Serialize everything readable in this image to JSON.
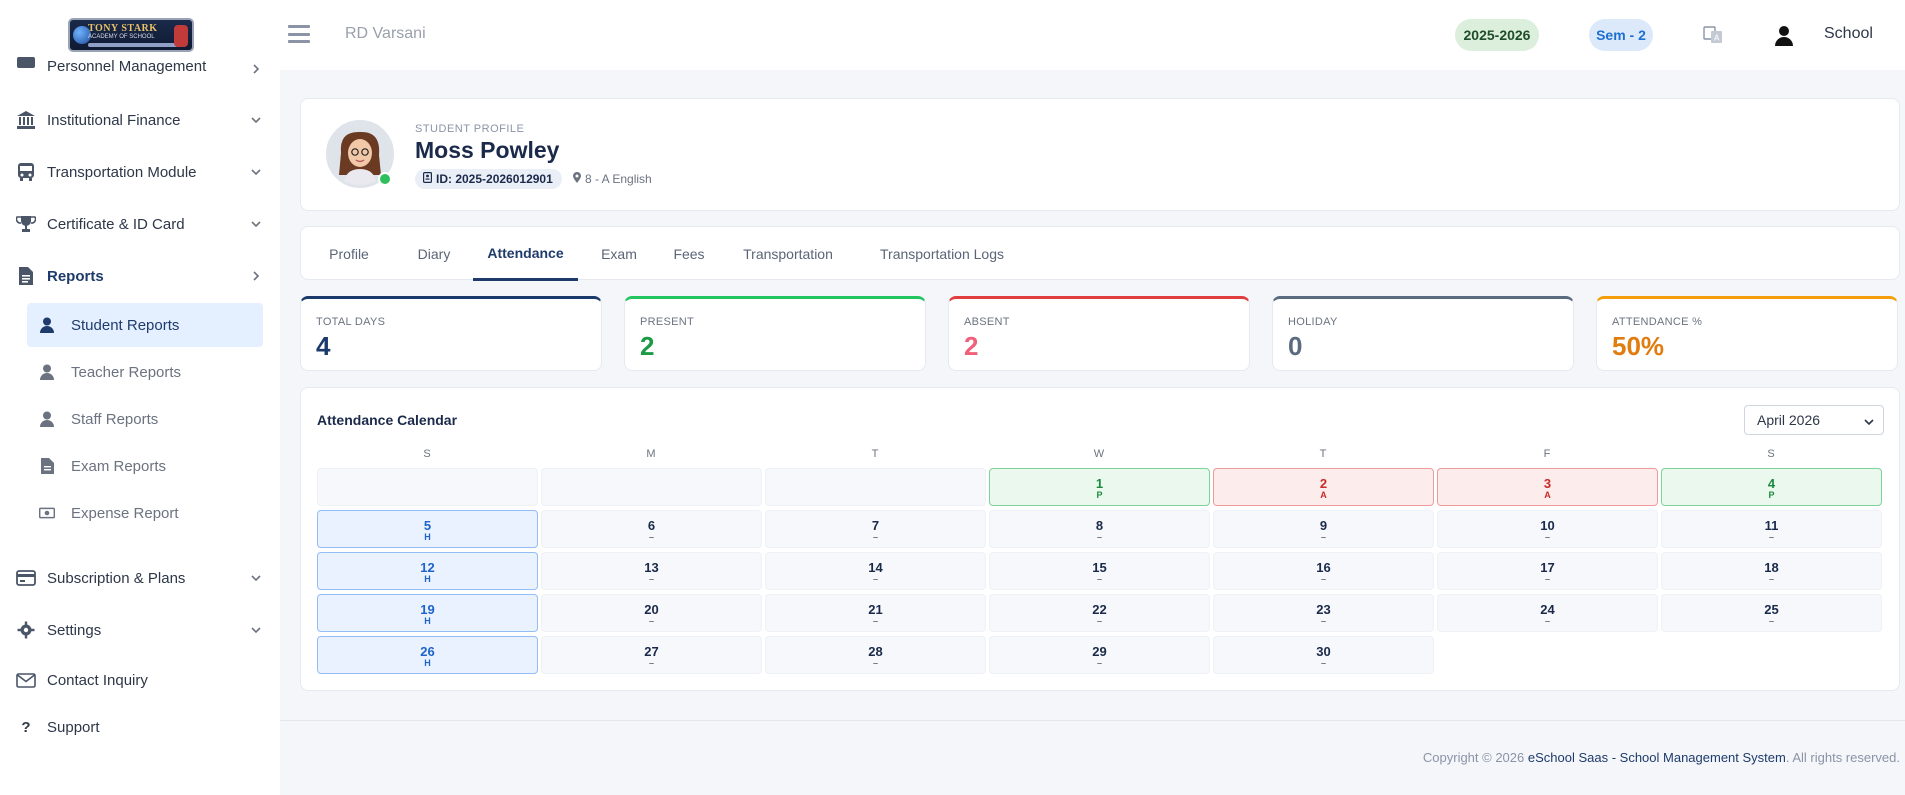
{
  "sidebar": {
    "logo": {
      "line1": "TONY STARK",
      "line2": "ACADEMY OF SCHOOL"
    },
    "cut_item": "Personnel Management",
    "items": [
      {
        "label": "Institutional Finance",
        "icon": "bank-icon"
      },
      {
        "label": "Transportation Module",
        "icon": "bus-icon"
      },
      {
        "label": "Certificate & ID Card",
        "icon": "trophy-icon"
      },
      {
        "label": "Reports",
        "icon": "report-file-icon"
      },
      {
        "label": "Subscription & Plans",
        "icon": "credit-card-icon"
      },
      {
        "label": "Settings",
        "icon": "gear-icon"
      },
      {
        "label": "Contact Inquiry",
        "icon": "envelope-icon"
      },
      {
        "label": "Support",
        "icon": "question-icon"
      }
    ],
    "report_subitems": [
      {
        "label": "Student Reports",
        "icon": "user-icon"
      },
      {
        "label": "Teacher Reports",
        "icon": "user-icon"
      },
      {
        "label": "Staff Reports",
        "icon": "user-icon"
      },
      {
        "label": "Exam Reports",
        "icon": "report-file-icon"
      },
      {
        "label": "Expense Report",
        "icon": "money-icon"
      }
    ]
  },
  "header": {
    "school": "RD Varsani",
    "session": "2025-2026",
    "semester": "Sem - 2",
    "user": "School"
  },
  "profile": {
    "kicker": "STUDENT PROFILE",
    "name": "Moss Powley",
    "id": "ID: 2025-2026012901",
    "class": "8 - A English"
  },
  "tabs": [
    "Profile",
    "Diary",
    "Attendance",
    "Exam",
    "Fees",
    "Transportation",
    "Transportation Logs"
  ],
  "active_tab": "Attendance",
  "stats": [
    {
      "label": "TOTAL DAYS",
      "value": "4",
      "color": "#1b3a6b"
    },
    {
      "label": "PRESENT",
      "value": "2",
      "color": "#1c9a44"
    },
    {
      "label": "ABSENT",
      "value": "2",
      "color": "#f0607a"
    },
    {
      "label": "HOLIDAY",
      "value": "0",
      "color": "#5a6b80"
    },
    {
      "label": "ATTENDANCE %",
      "value": "50%",
      "color": "#e07c10"
    }
  ],
  "calendar": {
    "title": "Attendance Calendar",
    "month": "April 2026",
    "weekdays": [
      "S",
      "M",
      "T",
      "W",
      "T",
      "F",
      "S"
    ],
    "placeholder": "–",
    "days": [
      {
        "n": "1",
        "s": "P",
        "type": "present"
      },
      {
        "n": "2",
        "s": "A",
        "type": "absent"
      },
      {
        "n": "3",
        "s": "A",
        "type": "absent"
      },
      {
        "n": "4",
        "s": "P",
        "type": "present"
      },
      {
        "n": "5",
        "s": "H",
        "type": "holiday"
      },
      {
        "n": "6",
        "s": "–",
        "type": "normal"
      },
      {
        "n": "7",
        "s": "–",
        "type": "normal"
      },
      {
        "n": "8",
        "s": "–",
        "type": "normal"
      },
      {
        "n": "9",
        "s": "–",
        "type": "normal"
      },
      {
        "n": "10",
        "s": "–",
        "type": "normal"
      },
      {
        "n": "11",
        "s": "–",
        "type": "normal"
      },
      {
        "n": "12",
        "s": "H",
        "type": "holiday"
      },
      {
        "n": "13",
        "s": "–",
        "type": "normal"
      },
      {
        "n": "14",
        "s": "–",
        "type": "normal"
      },
      {
        "n": "15",
        "s": "–",
        "type": "normal"
      },
      {
        "n": "16",
        "s": "–",
        "type": "normal"
      },
      {
        "n": "17",
        "s": "–",
        "type": "normal"
      },
      {
        "n": "18",
        "s": "–",
        "type": "normal"
      },
      {
        "n": "19",
        "s": "H",
        "type": "holiday"
      },
      {
        "n": "20",
        "s": "–",
        "type": "normal"
      },
      {
        "n": "21",
        "s": "–",
        "type": "normal"
      },
      {
        "n": "22",
        "s": "–",
        "type": "normal"
      },
      {
        "n": "23",
        "s": "–",
        "type": "normal"
      },
      {
        "n": "24",
        "s": "–",
        "type": "normal"
      },
      {
        "n": "25",
        "s": "–",
        "type": "normal"
      },
      {
        "n": "26",
        "s": "H",
        "type": "holiday"
      },
      {
        "n": "27",
        "s": "–",
        "type": "normal"
      },
      {
        "n": "28",
        "s": "–",
        "type": "normal"
      },
      {
        "n": "29",
        "s": "–",
        "type": "normal"
      },
      {
        "n": "30",
        "s": "–",
        "type": "normal"
      }
    ]
  },
  "footer": {
    "prefix": "Copyright © 2026 ",
    "brand": "eSchool Saas - School Management System",
    "suffix": ". All rights reserved."
  }
}
